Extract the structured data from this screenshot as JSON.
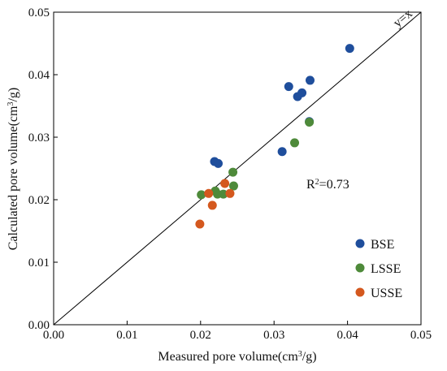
{
  "chart_data": {
    "type": "scatter",
    "title": "",
    "xlabel": {
      "prefix": "Measured pore volume(cm",
      "sup": "3",
      "suffix": "/g)"
    },
    "ylabel": {
      "prefix": "Calculated pore volume(cm",
      "sup": "3",
      "suffix": "/g)"
    },
    "xlim": [
      0,
      0.05
    ],
    "ylim": [
      0,
      0.05
    ],
    "xticks": [
      "0.00",
      "0.01",
      "0.02",
      "0.03",
      "0.04",
      "0.05"
    ],
    "yticks": [
      "0.00",
      "0.01",
      "0.02",
      "0.03",
      "0.04",
      "0.05"
    ],
    "grid": false,
    "legend_position": "bottom-right",
    "reference_line": {
      "label": "y=x",
      "from": [
        0,
        0
      ],
      "to": [
        0.05,
        0.05
      ]
    },
    "annotation": {
      "prefix": "R",
      "sup": "2",
      "suffix": "=0.73"
    },
    "series": [
      {
        "name": "BSE",
        "color": "#1f4e9c",
        "points": [
          [
            0.0219,
            0.0261
          ],
          [
            0.0224,
            0.0258
          ],
          [
            0.0311,
            0.0277
          ],
          [
            0.032,
            0.0381
          ],
          [
            0.0332,
            0.0365
          ],
          [
            0.0338,
            0.0371
          ],
          [
            0.0349,
            0.0391
          ],
          [
            0.0403,
            0.0442
          ],
          [
            0.0348,
            0.0325
          ]
        ]
      },
      {
        "name": "LSSE",
        "color": "#4e8a3a",
        "points": [
          [
            0.0201,
            0.0208
          ],
          [
            0.022,
            0.0214
          ],
          [
            0.0223,
            0.0209
          ],
          [
            0.0231,
            0.0209
          ],
          [
            0.0244,
            0.0244
          ],
          [
            0.0245,
            0.0222
          ],
          [
            0.0328,
            0.0291
          ],
          [
            0.0348,
            0.0324
          ]
        ]
      },
      {
        "name": "USSE",
        "color": "#d4581e",
        "points": [
          [
            0.0199,
            0.0161
          ],
          [
            0.0211,
            0.021
          ],
          [
            0.0216,
            0.0191
          ],
          [
            0.0233,
            0.0226
          ],
          [
            0.024,
            0.021
          ]
        ]
      }
    ]
  }
}
